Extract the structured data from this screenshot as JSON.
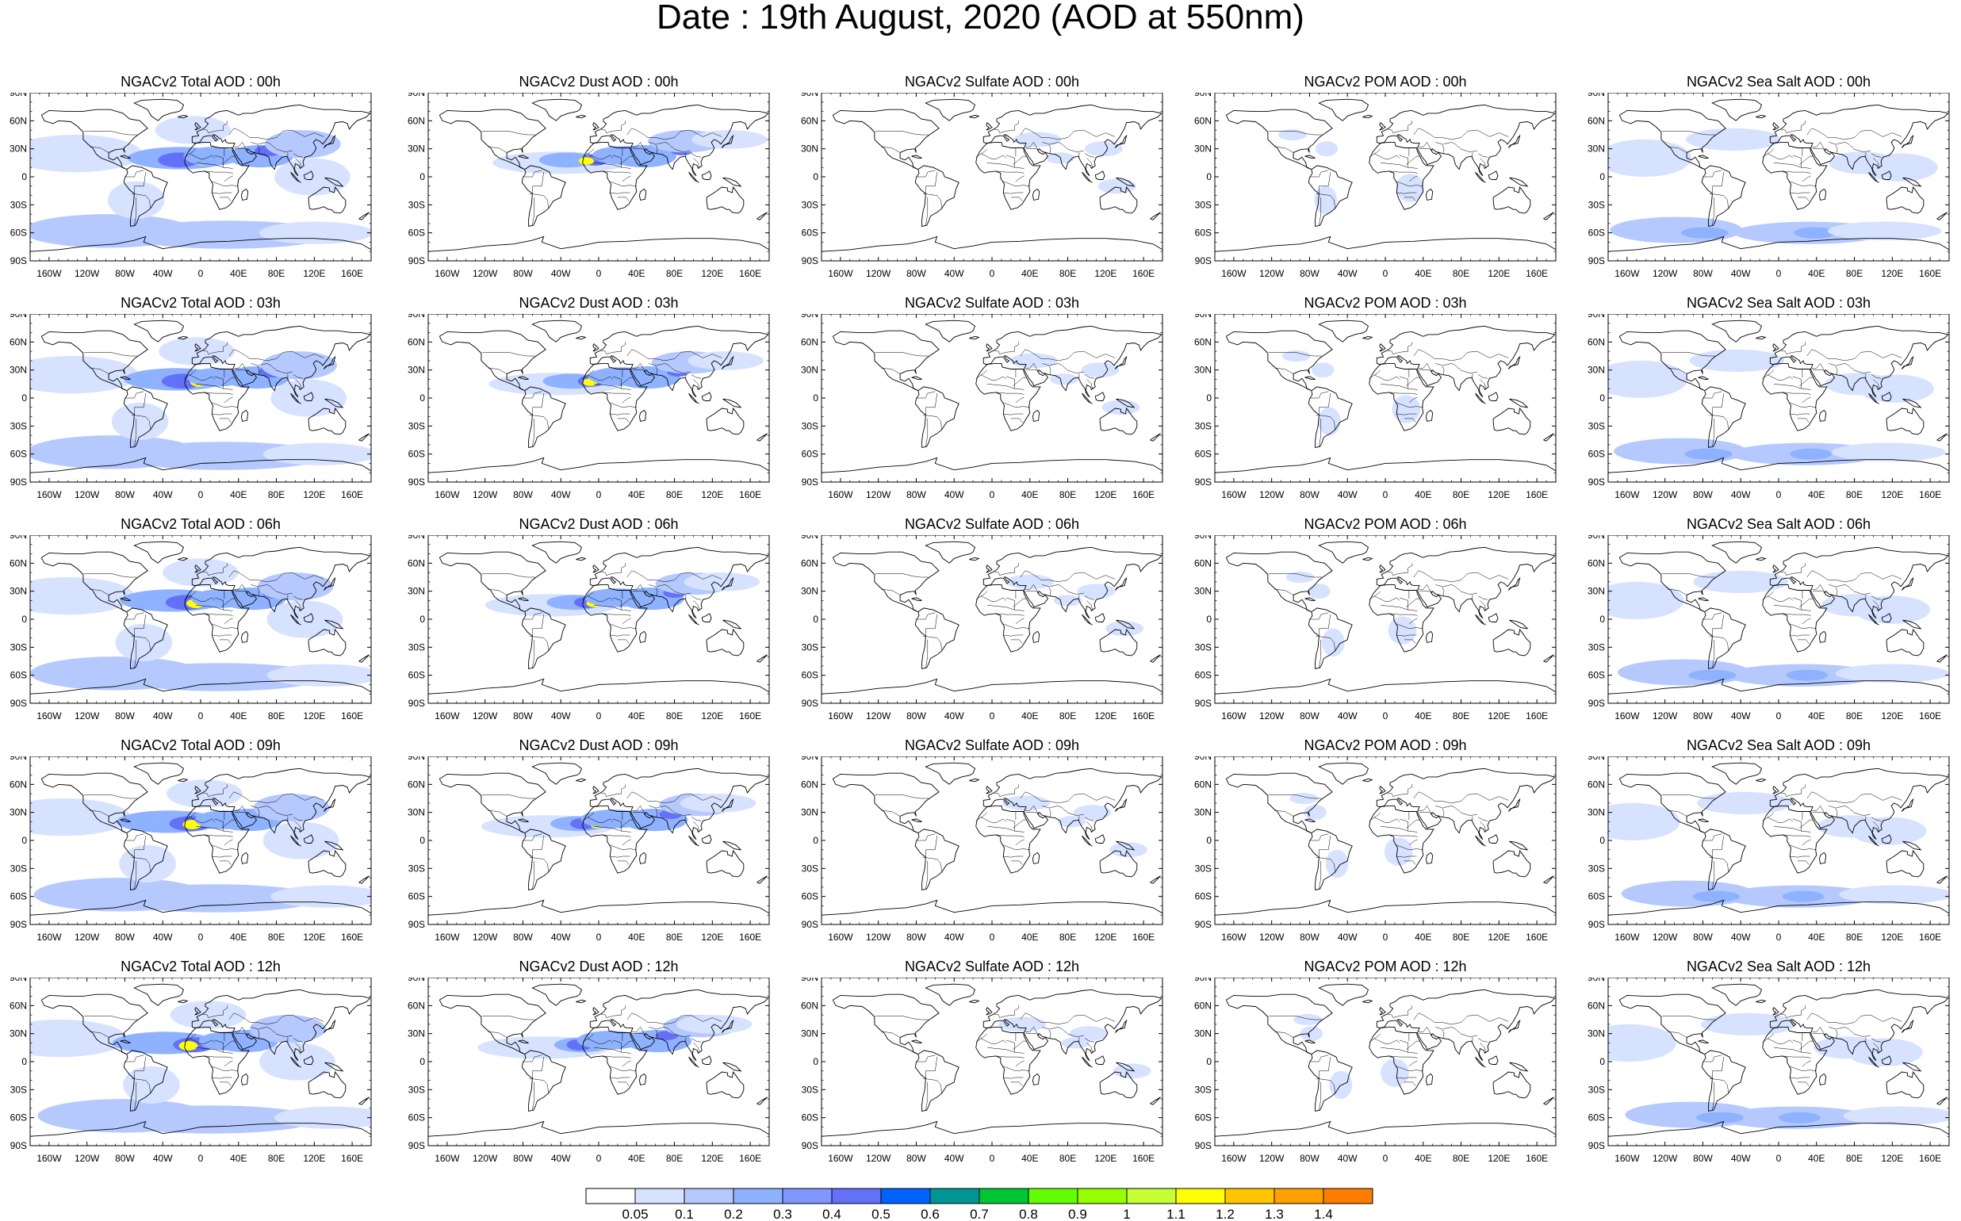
{
  "title": "Date : 19th August, 2020 (AOD at 550nm)",
  "lat_labels": [
    "90N",
    "60N",
    "30N",
    "0",
    "30S",
    "60S",
    "90S"
  ],
  "lon_labels": [
    "160W",
    "120W",
    "80W",
    "40W",
    "0",
    "40E",
    "80E",
    "120E",
    "160E"
  ],
  "columns": [
    {
      "species": "total",
      "titles": [
        "NGACv2 Total AOD : 00h",
        "NGACv2 Total AOD : 03h",
        "NGACv2 Total AOD : 06h",
        "NGACv2 Total AOD : 09h",
        "NGACv2 Total AOD : 12h"
      ]
    },
    {
      "species": "dust",
      "titles": [
        "NGACv2 Dust AOD : 00h",
        "NGACv2 Dust AOD : 03h",
        "NGACv2 Dust AOD : 06h",
        "NGACv2 Dust AOD : 09h",
        "NGACv2 Dust AOD : 12h"
      ]
    },
    {
      "species": "sulfate",
      "titles": [
        "NGACv2 Sulfate AOD : 00h",
        "NGACv2 Sulfate AOD : 03h",
        "NGACv2 Sulfate AOD : 06h",
        "NGACv2 Sulfate AOD : 09h",
        "NGACv2 Sulfate AOD : 12h"
      ]
    },
    {
      "species": "pom",
      "titles": [
        "NGACv2 POM AOD : 00h",
        "NGACv2 POM AOD : 03h",
        "NGACv2 POM AOD : 06h",
        "NGACv2 POM AOD : 09h",
        "NGACv2 POM  AOD : 12h"
      ]
    },
    {
      "species": "seasalt",
      "titles": [
        "NGACv2 Sea Salt AOD : 00h",
        "NGACv2 Sea Salt AOD : 03h",
        "NGACv2 Sea Salt AOD : 06h",
        "NGACv2 Sea Salt  AOD : 09h",
        "NGACv2 Sea Salt AOD : 12h"
      ]
    }
  ],
  "colorbar": {
    "labels": [
      "0.05",
      "0.1",
      "0.2",
      "0.3",
      "0.4",
      "0.5",
      "0.6",
      "0.7",
      "0.8",
      "0.9",
      "1",
      "1.1",
      "1.2",
      "1.3",
      "1.4"
    ],
    "colors": [
      "#ffffff",
      "#d6e2ff",
      "#b5c9ff",
      "#8eb2ff",
      "#7f96ff",
      "#6370f8",
      "#0063ff",
      "#009696",
      "#00c633",
      "#63ff00",
      "#96ff00",
      "#c6ff33",
      "#ffff00",
      "#ffc600",
      "#ffa000",
      "#ff7c00",
      "#ff1900"
    ]
  }
}
